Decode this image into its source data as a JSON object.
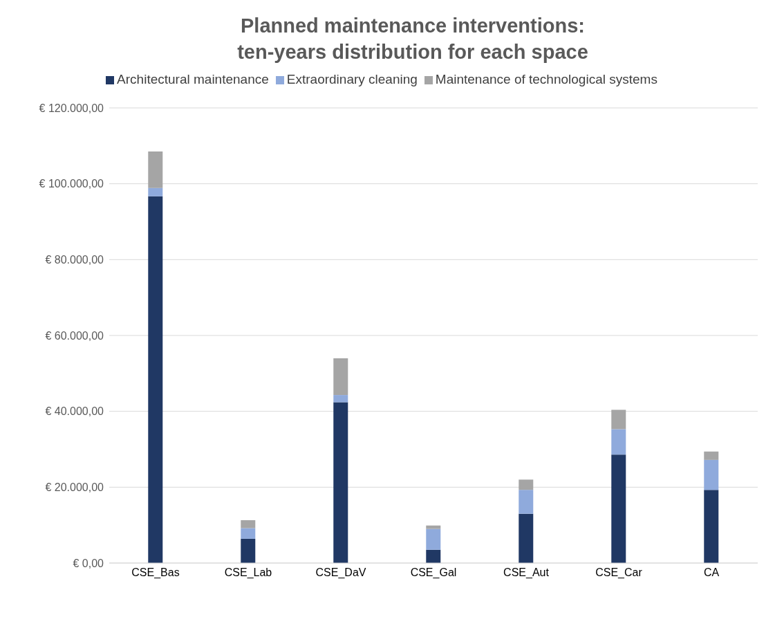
{
  "chart_data": {
    "type": "bar",
    "title": "Planned maintenance interventions:\nten-years distribution for each space",
    "stacked": true,
    "legend": "top",
    "grid": "y",
    "categories": [
      "CSE_Bas",
      "CSE_Lab",
      "CSE_DaV",
      "CSE_Gal",
      "CSE_Aut",
      "CSE_Car",
      "CA"
    ],
    "series": [
      {
        "name": "Architectural maintenance",
        "color": "#203864",
        "values": [
          96700,
          6400,
          42400,
          3500,
          13000,
          28600,
          19300
        ]
      },
      {
        "name": "Extraordinary cleaning",
        "color": "#8faadc",
        "values": [
          2200,
          2800,
          1900,
          5500,
          6300,
          6700,
          7900
        ]
      },
      {
        "name": "Maintenance of technological systems",
        "color": "#a5a5a5",
        "values": [
          9600,
          2100,
          9700,
          900,
          2700,
          5100,
          2200
        ]
      }
    ],
    "ylim": [
      0,
      120000
    ],
    "yticks": [
      {
        "value": 0,
        "label": "€ 0,00"
      },
      {
        "value": 20000,
        "label": "€ 20.000,00"
      },
      {
        "value": 40000,
        "label": "€ 40.000,00"
      },
      {
        "value": 60000,
        "label": "€ 60.000,00"
      },
      {
        "value": 80000,
        "label": "€ 80.000,00"
      },
      {
        "value": 100000,
        "label": "€ 100.000,00"
      },
      {
        "value": 120000,
        "label": "€ 120.000,00"
      }
    ]
  }
}
